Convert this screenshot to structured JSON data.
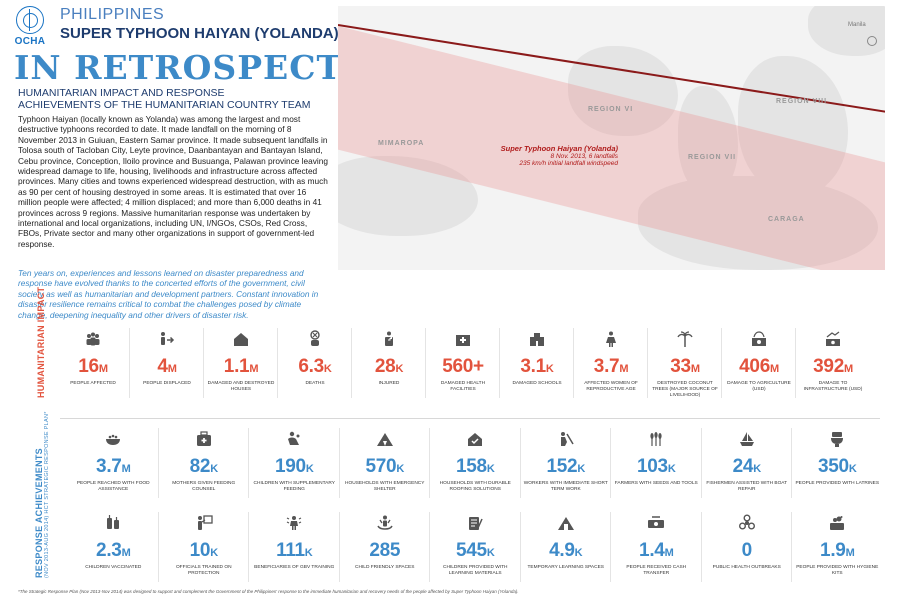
{
  "header": {
    "logo_text": "OCHA",
    "country": "PHILIPPINES",
    "title": "SUPER TYPHOON HAIYAN (YOLANDA)",
    "headline": "IN RETROSPECT",
    "subtitle_line1": "HUMANITARIAN IMPACT AND RESPONSE",
    "subtitle_line2": "ACHIEVEMENTS OF THE HUMANITARIAN COUNTRY TEAM"
  },
  "intro": {
    "body": "Typhoon Haiyan (locally known as Yolanda) was among the largest and most destructive typhoons recorded to date. It made landfall on the morning of 8 November 2013 in Guiuan, Eastern Samar province. It made subsequent landfalls in Tolosa south of Tacloban City, Leyte province, Daanbantayan and Bantayan Island, Cebu province, Conception, Iloilo province and Busuanga, Palawan province leaving widespread damage to life, housing, livelihoods and infrastructure across affected provinces. Many cities and towns experienced widespread destruction, with as much as 90 per cent of housing destroyed in some areas. It is estimated that over 16 million people were affected; 4 million displaced; and more than 6,000 deaths in 41 provinces across 9 regions. Massive humanitarian response was undertaken by international and local organizations, including UN, I/NGOs, CSOs, Red Cross, FBOs, Private sector and many other organizations in support of government-led response.",
    "italic": "Ten years on, experiences and lessons learned on disaster preparedness and response have evolved thanks to the concerted efforts of the government, civil society as well as humanitarian and development partners. Constant innovation in disaster resilience remains critical to combat the challenges posed by climate change, deepening inequality and other drivers of disaster risk."
  },
  "map": {
    "caption_title": "Super Typhoon Haiyan (Yolanda)",
    "caption_date": "8 Nov. 2013, 6 landfalls",
    "caption_wind": "235 km/h initial landfall windspeed",
    "regions": [
      "MIMAROPA",
      "REGION VI",
      "REGION VII",
      "REGION VIII",
      "CARAGA"
    ],
    "city": "Manila"
  },
  "impact": {
    "label": "HUMANITARIAN IMPACT",
    "color": "#e2533d",
    "items": [
      {
        "value": "16",
        "unit": "M",
        "label": "PEOPLE AFFECTED",
        "icon": "people-group-icon"
      },
      {
        "value": "4",
        "unit": "M",
        "label": "PEOPLE DISPLACED",
        "icon": "person-arrow-icon"
      },
      {
        "value": "1.1",
        "unit": "M",
        "label": "DAMAGED and DESTROYED HOUSES",
        "icon": "house-icon"
      },
      {
        "value": "6.3",
        "unit": "K",
        "label": "DEATHS",
        "icon": "deaths-icon"
      },
      {
        "value": "28",
        "unit": "K",
        "label": "INJURED",
        "icon": "injured-icon"
      },
      {
        "value": "560+",
        "unit": "",
        "label": "DAMAGED HEALTH FACILITIES",
        "icon": "health-facility-icon"
      },
      {
        "value": "3.1",
        "unit": "K",
        "label": "DAMAGED SCHOOLS",
        "icon": "school-icon"
      },
      {
        "value": "3.7",
        "unit": "M",
        "label": "AFFECTED WOMEN OF REPRODUCTIVE AGE",
        "icon": "woman-icon"
      },
      {
        "value": "33",
        "unit": "M",
        "label": "DESTROYED COCONUT TREES (MAJOR SOURCE OF LIVELIHOOD)",
        "icon": "coconut-tree-icon"
      },
      {
        "value": "406",
        "unit": "M",
        "label": "DAMAGE TO AGRICULTURE (USD)",
        "icon": "agriculture-money-icon"
      },
      {
        "value": "392",
        "unit": "M",
        "label": "DAMAGE TO INFRASTRUCTURE (USD)",
        "icon": "infrastructure-money-icon"
      }
    ]
  },
  "response": {
    "label": "RESPONSE ACHIEVEMENTS",
    "sublabel": "(NOV 2013-AUG 2014) HCT STRATEGIC RESPONSE PLAN*",
    "color": "#3d8ac8",
    "row1": [
      {
        "value": "3.7",
        "unit": "M",
        "label": "PEOPLE REACHED WITH FOOD ASSISTANCE",
        "icon": "food-bowl-icon"
      },
      {
        "value": "82",
        "unit": "K",
        "label": "MOTHERS GIVEN FEEDING COUNSEL",
        "icon": "first-aid-kit-icon"
      },
      {
        "value": "190",
        "unit": "K",
        "label": "CHILDREN WITH SUPPLEMENTARY FEEDING",
        "icon": "child-feeding-icon"
      },
      {
        "value": "570",
        "unit": "K",
        "label": "HOUSEHOLDS WITH EMERGENCY SHELTER",
        "icon": "tent-icon"
      },
      {
        "value": "158",
        "unit": "K",
        "label": "HOUSEHOLDS WITH DURABLE ROOFING SOLUTIONS",
        "icon": "house-check-icon"
      },
      {
        "value": "152",
        "unit": "K",
        "label": "WORKERS WITH IMMEDIATE SHORT TERM WORK",
        "icon": "worker-icon"
      },
      {
        "value": "103",
        "unit": "K",
        "label": "FARMERS WITH SEEDS AND TOOLS",
        "icon": "wheat-icon"
      },
      {
        "value": "24",
        "unit": "K",
        "label": "FISHERMEN ASSISTED WITH BOAT REPAIR",
        "icon": "boat-icon"
      },
      {
        "value": "350",
        "unit": "K",
        "label": "PEOPLE PROVIDED WITH LATRINES",
        "icon": "latrine-icon"
      }
    ],
    "row2": [
      {
        "value": "2.3",
        "unit": "M",
        "label": "CHILDREN VACCINATED",
        "icon": "vaccine-icon"
      },
      {
        "value": "10",
        "unit": "K",
        "label": "OFFICIALS TRAINED ON PROTECTION",
        "icon": "trainer-icon"
      },
      {
        "value": "111",
        "unit": "K",
        "label": "BENEFICIARIES OF GBV TRAINING",
        "icon": "gbv-icon"
      },
      {
        "value": "285",
        "unit": "",
        "label": "CHILD FRIENDLY SPACES",
        "icon": "child-friendly-icon"
      },
      {
        "value": "545",
        "unit": "K",
        "label": "CHILDREN PROVIDED WITH LEARNING MATERIALS",
        "icon": "learning-materials-icon"
      },
      {
        "value": "4.9",
        "unit": "K",
        "label": "TEMPORARY LEARNING SPACES",
        "icon": "learning-space-icon"
      },
      {
        "value": "1.4",
        "unit": "M",
        "label": "PEOPLE RECEIVED CASH TRANSFER",
        "icon": "cash-icon"
      },
      {
        "value": "0",
        "unit": "",
        "label": "PUBLIC HEALTH OUTBREAKS",
        "icon": "biohazard-icon"
      },
      {
        "value": "1.9",
        "unit": "M",
        "label": "PEOPLE PROVIDED WITH HYGIENE KITS",
        "icon": "hygiene-kit-icon"
      }
    ]
  },
  "footnote": "*The Strategic Response Plan (Nov 2013-Nov 2014) was designed to support and complement the Government of the Philippines' response to the immediate humanitarian and recovery needs of the people affected by Super Typhoon Haiyan (Yolanda)."
}
